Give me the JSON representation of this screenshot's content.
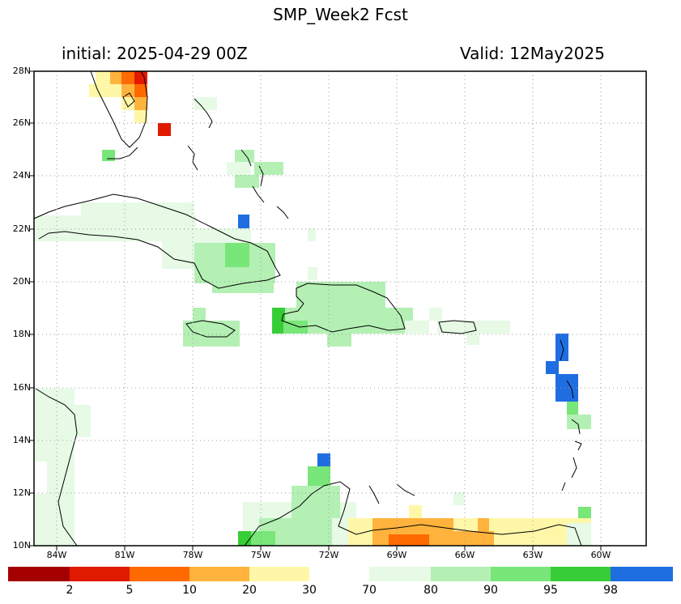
{
  "header": {
    "title": "SMP_Week2   Fcst",
    "initial": "initial:  2025-04-29   00Z",
    "valid": "Valid:  12May2025"
  },
  "axes": {
    "lat_labels": [
      "28N",
      "26N",
      "24N",
      "22N",
      "20N",
      "18N",
      "16N",
      "14N",
      "12N",
      "10N"
    ],
    "lon_labels": [
      "84W",
      "81W",
      "78W",
      "75W",
      "72W",
      "69W",
      "66W",
      "63W",
      "60W"
    ]
  },
  "colorbar": {
    "colors": [
      "#a50000",
      "#e01a00",
      "#ff6a00",
      "#ffb33c",
      "#fff7a8",
      "#ffffff",
      "#e6fae6",
      "#b4f0b4",
      "#78e678",
      "#37cd37",
      "#1e6ee1"
    ],
    "labels": [
      "2",
      "5",
      "10",
      "20",
      "30",
      "70",
      "80",
      "90",
      "95",
      "98"
    ]
  }
}
